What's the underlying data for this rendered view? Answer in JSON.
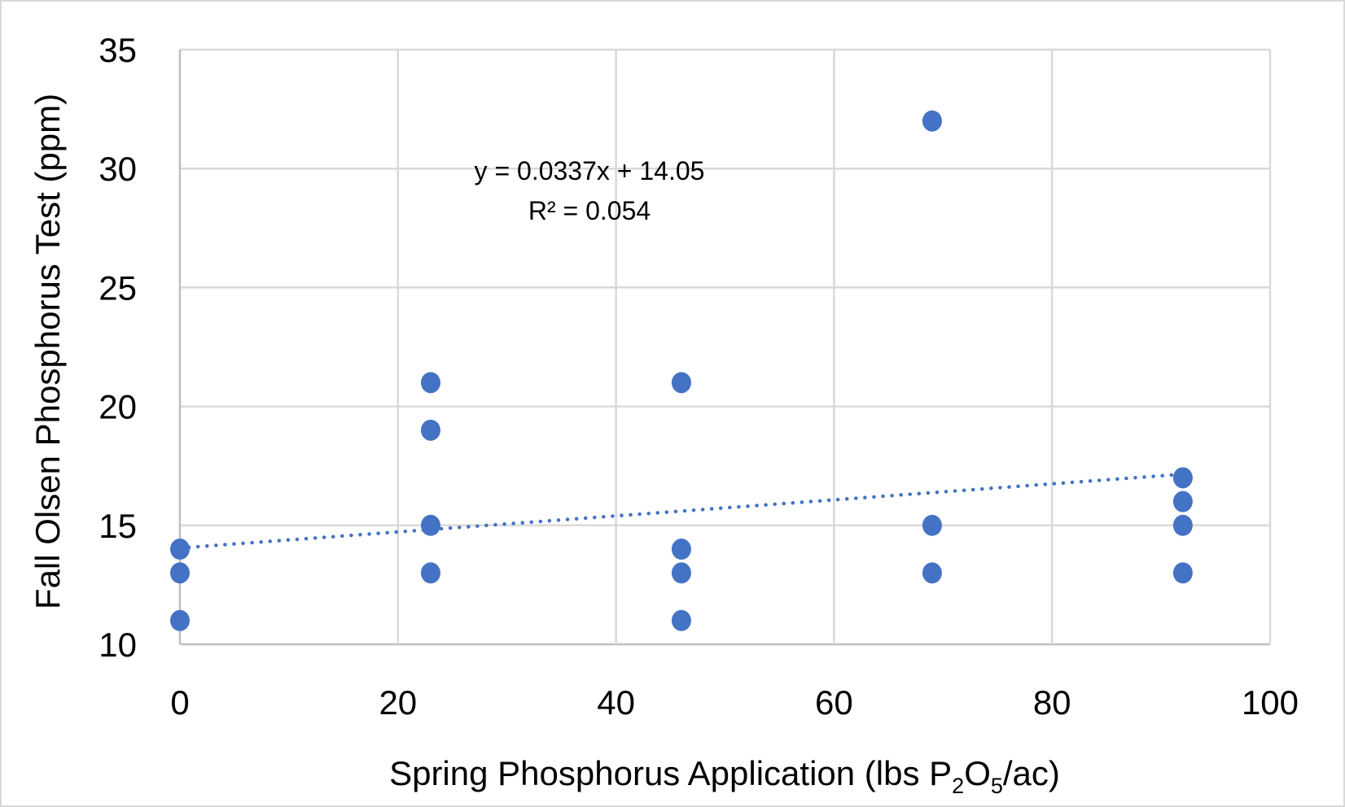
{
  "chart_data": {
    "type": "scatter",
    "title": "",
    "xlabel": "Spring Phosphorus Application (lbs P",
    "xlabel_sub1": "2",
    "xlabel_mid": "O",
    "xlabel_sub2": "5",
    "xlabel_end": "/ac)",
    "ylabel": "Fall Olsen Phosphorus Test (ppm)",
    "xlim": [
      0,
      100
    ],
    "ylim": [
      10,
      35
    ],
    "xticks": [
      "0",
      "20",
      "40",
      "60",
      "80",
      "100"
    ],
    "yticks": [
      "10",
      "15",
      "20",
      "25",
      "30",
      "35"
    ],
    "grid": true,
    "marker_color": "#4472C4",
    "points": [
      {
        "x": 0,
        "y": 14
      },
      {
        "x": 0,
        "y": 13
      },
      {
        "x": 0,
        "y": 11
      },
      {
        "x": 23,
        "y": 21
      },
      {
        "x": 23,
        "y": 19
      },
      {
        "x": 23,
        "y": 15
      },
      {
        "x": 23,
        "y": 13
      },
      {
        "x": 46,
        "y": 21
      },
      {
        "x": 46,
        "y": 14
      },
      {
        "x": 46,
        "y": 13
      },
      {
        "x": 46,
        "y": 11
      },
      {
        "x": 69,
        "y": 32
      },
      {
        "x": 69,
        "y": 15
      },
      {
        "x": 69,
        "y": 13
      },
      {
        "x": 92,
        "y": 17
      },
      {
        "x": 92,
        "y": 16
      },
      {
        "x": 92,
        "y": 15
      },
      {
        "x": 92,
        "y": 13
      }
    ],
    "trendline": {
      "slope": 0.0337,
      "intercept": 14.05,
      "x_range": [
        0,
        92
      ],
      "style": "dotted",
      "equation": "y = 0.0337x + 14.05",
      "r_squared": "R² = 0.054"
    }
  }
}
